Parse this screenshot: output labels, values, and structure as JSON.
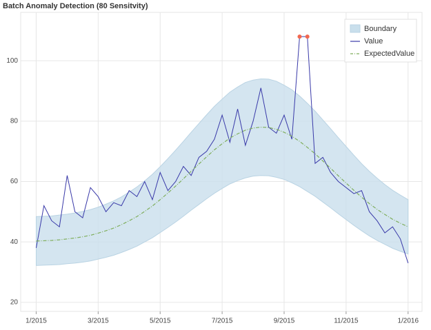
{
  "chart_data": {
    "type": "anomaly-line",
    "title": "Batch Anomaly Detection (80 Sensitvity)",
    "x": [
      0,
      0.25,
      0.5,
      0.75,
      1,
      1.25,
      1.5,
      1.75,
      2,
      2.25,
      2.5,
      2.75,
      3,
      3.25,
      3.5,
      3.75,
      4,
      4.25,
      4.5,
      4.75,
      5,
      5.25,
      5.5,
      5.75,
      6,
      6.25,
      6.5,
      6.75,
      7,
      7.25,
      7.5,
      7.75,
      8,
      8.25,
      8.5,
      8.75,
      9,
      9.25,
      9.5,
      9.75,
      10,
      10.25,
      10.5,
      10.75,
      11,
      11.25,
      11.5,
      11.75,
      12
    ],
    "boundary": {
      "name": "Boundary",
      "color": "#c9dfec",
      "upper": [
        48.4,
        48.5,
        48.6,
        48.9,
        49.2,
        49.6,
        50.1,
        50.7,
        51.5,
        52.5,
        53.6,
        54.9,
        56.5,
        58.2,
        60.2,
        62.4,
        64.9,
        67.6,
        70.4,
        73.3,
        76.3,
        79.2,
        82.1,
        84.9,
        87.3,
        89.6,
        91.3,
        92.8,
        93.6,
        94.0,
        93.9,
        93.2,
        91.9,
        90.4,
        88.3,
        85.9,
        83.3,
        80.4,
        77.5,
        74.5,
        71.6,
        68.7,
        65.9,
        63.4,
        61.1,
        59.0,
        57.1,
        55.5,
        54.0
      ],
      "lower": [
        32.2,
        32.3,
        32.4,
        32.5,
        32.8,
        33.0,
        33.3,
        33.7,
        34.3,
        34.9,
        35.6,
        36.5,
        37.5,
        38.6,
        40.0,
        41.4,
        43.1,
        44.8,
        46.6,
        48.5,
        50.5,
        52.4,
        54.3,
        56.1,
        57.7,
        59.2,
        60.3,
        61.2,
        61.8,
        62.0,
        61.9,
        61.4,
        60.7,
        59.6,
        58.3,
        56.7,
        55.1,
        53.2,
        51.3,
        49.3,
        47.4,
        45.5,
        43.7,
        42.0,
        40.5,
        39.2,
        37.9,
        36.9,
        36.0
      ]
    },
    "series": [
      {
        "name": "Value",
        "color": "#3838a8",
        "values": [
          38,
          52,
          47,
          45,
          62,
          50,
          48,
          58,
          55,
          50,
          53,
          52,
          57,
          55,
          60,
          54,
          63,
          57,
          60,
          65,
          62,
          68,
          70,
          74,
          82,
          73,
          84,
          72,
          80,
          91,
          78,
          76,
          82,
          74,
          108,
          108,
          66,
          68,
          63,
          60,
          58,
          56,
          57,
          50,
          47,
          43,
          45,
          41,
          33
        ]
      },
      {
        "name": "ExpectedValue",
        "color": "#7fae5c",
        "values": [
          40.3,
          40.4,
          40.5,
          40.7,
          41.0,
          41.3,
          41.7,
          42.2,
          42.9,
          43.7,
          44.6,
          45.7,
          47.0,
          48.4,
          50.1,
          51.9,
          54.0,
          56.2,
          58.5,
          60.9,
          63.4,
          65.8,
          68.2,
          70.5,
          72.5,
          74.4,
          75.8,
          77.0,
          77.7,
          78.0,
          77.9,
          77.3,
          76.3,
          75.0,
          73.3,
          71.3,
          69.2,
          66.8,
          64.4,
          61.9,
          59.5,
          57.1,
          54.8,
          52.7,
          50.8,
          49.1,
          47.5,
          46.2,
          45.0
        ]
      }
    ],
    "anomalies": {
      "color": "#f2684f",
      "x": [
        8.5,
        8.75
      ],
      "values": [
        108,
        108
      ]
    },
    "xlim": [
      -0.5,
      12.45
    ],
    "xticks": [
      {
        "value": 0,
        "label": "1/2015"
      },
      {
        "value": 2,
        "label": "3/2015"
      },
      {
        "value": 4,
        "label": "5/2015"
      },
      {
        "value": 6,
        "label": "7/2015"
      },
      {
        "value": 8,
        "label": "9/2015"
      },
      {
        "value": 10,
        "label": "11/2015"
      },
      {
        "value": 12,
        "label": "1/2016"
      }
    ],
    "ylim": [
      17,
      116
    ],
    "yticks": [
      20,
      40,
      60,
      80,
      100
    ],
    "grid": true,
    "legend": "top-right"
  }
}
